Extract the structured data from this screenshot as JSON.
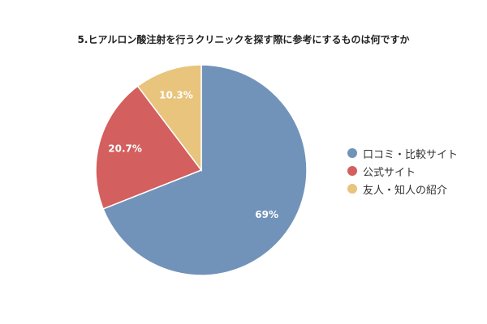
{
  "chart_data": {
    "type": "pie",
    "title": "5.ヒアルロン酸注射を行うクリニックを探す際に参考にするものは何ですか",
    "slices": [
      {
        "label": "口コミ・比較サイト",
        "value": 69,
        "display": "69%",
        "color": "#7293B9"
      },
      {
        "label": "公式サイト",
        "value": 20.7,
        "display": "20.7%",
        "color": "#D35F5E"
      },
      {
        "label": "友人・知人の紹介",
        "value": 10.3,
        "display": "10.3%",
        "color": "#E8C47D"
      }
    ],
    "legend_position": "right"
  }
}
